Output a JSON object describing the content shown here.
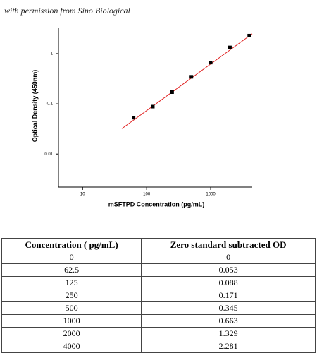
{
  "caption": "with permission from Sino Biological",
  "chart_data": {
    "type": "scatter",
    "xlabel": "mSFTPD Concentration (pg/mL)",
    "ylabel": "Optical Density (450nm)",
    "xscale": "log",
    "yscale": "log",
    "x": [
      62.5,
      125,
      250,
      500,
      1000,
      2000,
      4000
    ],
    "values": [
      0.053,
      0.088,
      0.171,
      0.345,
      0.663,
      1.329,
      2.281
    ],
    "color": "#000000",
    "fit_line": {
      "color": "#e02020",
      "x": [
        41,
        4450
      ],
      "values": [
        0.032,
        2.48
      ]
    },
    "xlim": [
      4.2,
      4450
    ],
    "ylim": [
      0.0022,
      3.2
    ],
    "xticks": [
      10,
      100,
      1000
    ],
    "yticks": [
      0.01,
      0.1,
      1
    ]
  },
  "table": {
    "header": [
      "Concentration ( pg/mL)",
      "Zero standard subtracted OD"
    ],
    "rows": [
      [
        "0",
        "0"
      ],
      [
        "62.5",
        "0.053"
      ],
      [
        "125",
        "0.088"
      ],
      [
        "250",
        "0.171"
      ],
      [
        "500",
        "0.345"
      ],
      [
        "1000",
        "0.663"
      ],
      [
        "2000",
        "1.329"
      ],
      [
        "4000",
        "2.281"
      ]
    ]
  }
}
